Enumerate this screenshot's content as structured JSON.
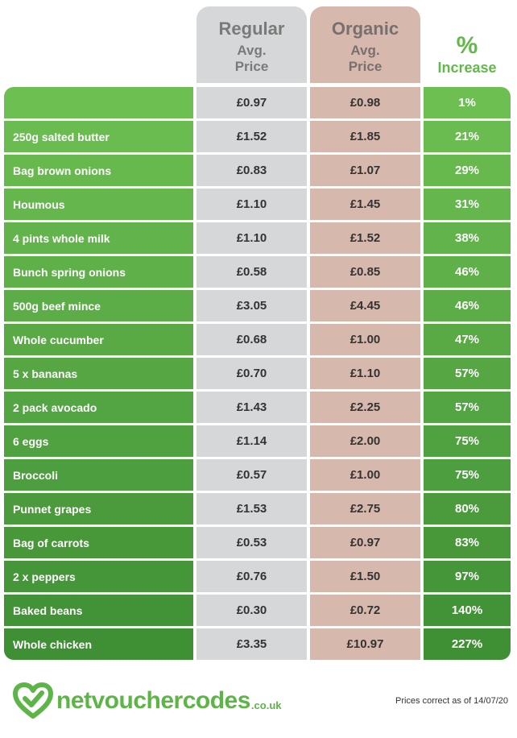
{
  "header": {
    "regular_title": "Regular",
    "regular_sub": "Avg.",
    "regular_sub2": "Price",
    "organic_title": "Organic",
    "organic_sub": "Avg.",
    "organic_sub2": "Price",
    "increase_symbol": "%",
    "increase_label": "Increase"
  },
  "colors": {
    "green_start": "#6dbf52",
    "green_end": "#3f8f35",
    "regular_bg": "#d5d7d8",
    "organic_bg": "#d7b8ad",
    "brand_green": "#5cb546"
  },
  "chart_data": {
    "type": "table",
    "columns": [
      "",
      "Regular Avg. Price",
      "Organic Avg. Price",
      "% Increase"
    ],
    "rows": [
      {
        "item": "",
        "regular": "£0.97",
        "organic": "£0.98",
        "increase": "1%"
      },
      {
        "item": "250g salted butter",
        "regular": "£1.52",
        "organic": "£1.85",
        "increase": "21%"
      },
      {
        "item": "Bag brown onions",
        "regular": "£0.83",
        "organic": "£1.07",
        "increase": "29%"
      },
      {
        "item": "Houmous",
        "regular": "£1.10",
        "organic": "£1.45",
        "increase": "31%"
      },
      {
        "item": "4 pints whole milk",
        "regular": "£1.10",
        "organic": "£1.52",
        "increase": "38%"
      },
      {
        "item": "Bunch spring onions",
        "regular": "£0.58",
        "organic": "£0.85",
        "increase": "46%"
      },
      {
        "item": "500g beef mince",
        "regular": "£3.05",
        "organic": "£4.45",
        "increase": "46%"
      },
      {
        "item": "Whole cucumber",
        "regular": "£0.68",
        "organic": "£1.00",
        "increase": "47%"
      },
      {
        "item": "5 x bananas",
        "regular": "£0.70",
        "organic": "£1.10",
        "increase": "57%"
      },
      {
        "item": "2 pack avocado",
        "regular": "£1.43",
        "organic": "£2.25",
        "increase": "57%"
      },
      {
        "item": "6 eggs",
        "regular": "£1.14",
        "organic": "£2.00",
        "increase": "75%"
      },
      {
        "item": "Broccoli",
        "regular": "£0.57",
        "organic": "£1.00",
        "increase": "75%"
      },
      {
        "item": "Punnet grapes",
        "regular": "£1.53",
        "organic": "£2.75",
        "increase": "80%"
      },
      {
        "item": "Bag of carrots",
        "regular": "£0.53",
        "organic": "£0.97",
        "increase": "83%"
      },
      {
        "item": "2 x peppers",
        "regular": "£0.76",
        "organic": "£1.50",
        "increase": "97%"
      },
      {
        "item": "Baked beans",
        "regular": "£0.30",
        "organic": "£0.72",
        "increase": "140%"
      },
      {
        "item": "Whole chicken",
        "regular": "£3.35",
        "organic": "£10.97",
        "increase": "227%"
      }
    ]
  },
  "footer": {
    "logo_text": "netvouchercodes",
    "logo_tld": ".co.uk",
    "logo_icon": "heart-icon",
    "note": "Prices correct as of 14/07/20"
  }
}
